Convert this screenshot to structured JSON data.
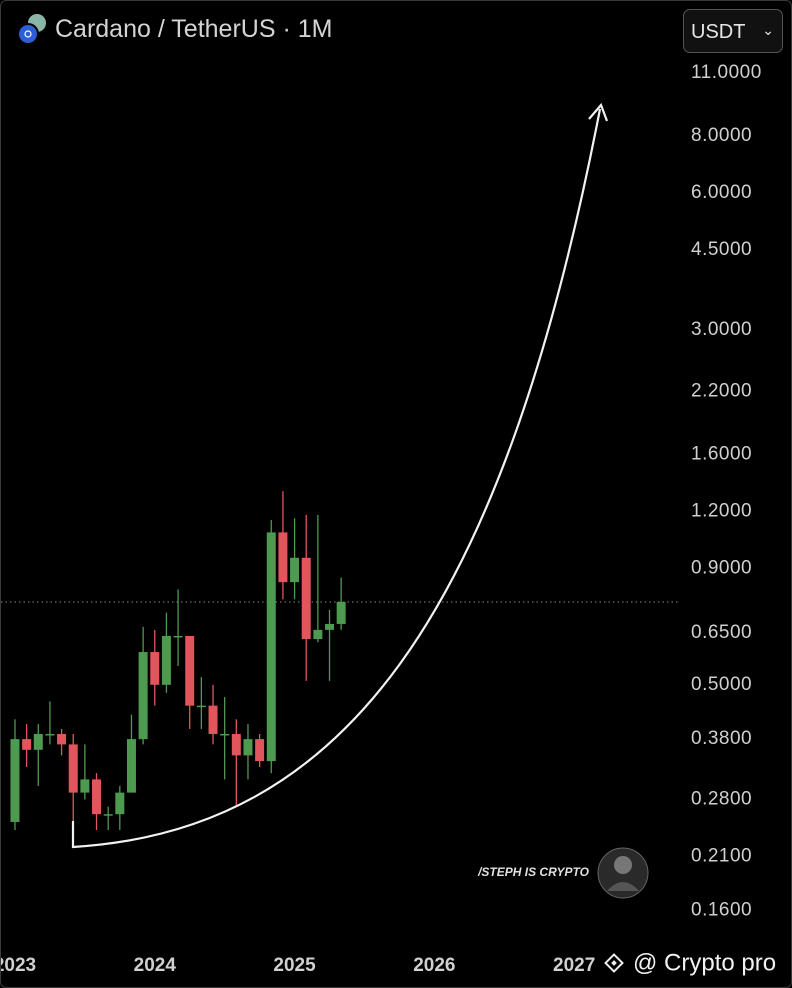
{
  "chart_data": {
    "type": "candlestick",
    "title": "Cardano / TetherUS · 1M",
    "currency": "USDT",
    "log_scale": true,
    "up_color": "#4e9a51",
    "down_color": "#e0565c",
    "xlim": [
      2022.9,
      2027.75
    ],
    "xticks": [
      2023,
      2024,
      2025,
      2026,
      2027
    ],
    "ylim": [
      0.137,
      12.3
    ],
    "yticks": [
      {
        "value": 0.16,
        "label": "0.1600"
      },
      {
        "value": 0.21,
        "label": "0.2100"
      },
      {
        "value": 0.28,
        "label": "0.2800"
      },
      {
        "value": 0.38,
        "label": "0.3800"
      },
      {
        "value": 0.5,
        "label": "0.5000"
      },
      {
        "value": 0.65,
        "label": "0.6500"
      },
      {
        "value": 0.9,
        "label": "0.9000"
      },
      {
        "value": 1.2,
        "label": "1.2000"
      },
      {
        "value": 1.6,
        "label": "1.6000"
      },
      {
        "value": 2.2,
        "label": "2.2000"
      },
      {
        "value": 3,
        "label": "3.0000"
      },
      {
        "value": 4.5,
        "label": "4.5000"
      },
      {
        "value": 6,
        "label": "6.0000"
      },
      {
        "value": 8,
        "label": "8.0000"
      },
      {
        "value": 11,
        "label": "11.0000"
      }
    ],
    "last_price": 0.76,
    "x": [
      2023.0,
      2023.0833,
      2023.1667,
      2023.25,
      2023.3333,
      2023.4167,
      2023.5,
      2023.5833,
      2023.6667,
      2023.75,
      2023.8333,
      2023.9167,
      2024.0,
      2024.0833,
      2024.1667,
      2024.25,
      2024.3333,
      2024.4167,
      2024.5,
      2024.5833,
      2024.6667,
      2024.75,
      2024.8333,
      2024.9167,
      2025.0,
      2025.0833,
      2025.1667,
      2025.25,
      2025.3333
    ],
    "open": [
      0.25,
      0.38,
      0.36,
      0.39,
      0.39,
      0.37,
      0.29,
      0.31,
      0.26,
      0.26,
      0.29,
      0.38,
      0.59,
      0.5,
      0.64,
      0.64,
      0.45,
      0.45,
      0.39,
      0.39,
      0.35,
      0.38,
      0.34,
      1.08,
      0.84,
      0.95,
      0.63,
      0.66,
      0.68
    ],
    "high": [
      0.42,
      0.41,
      0.41,
      0.46,
      0.4,
      0.39,
      0.37,
      0.32,
      0.27,
      0.3,
      0.43,
      0.67,
      0.66,
      0.72,
      0.81,
      0.64,
      0.52,
      0.5,
      0.47,
      0.42,
      0.41,
      0.39,
      1.15,
      1.33,
      1.16,
      1.18,
      1.18,
      0.73,
      0.86
    ],
    "low": [
      0.24,
      0.33,
      0.3,
      0.37,
      0.35,
      0.24,
      0.28,
      0.24,
      0.24,
      0.24,
      0.29,
      0.37,
      0.45,
      0.48,
      0.55,
      0.4,
      0.4,
      0.37,
      0.31,
      0.27,
      0.31,
      0.33,
      0.32,
      0.77,
      0.77,
      0.51,
      0.62,
      0.51,
      0.66
    ],
    "close": [
      0.38,
      0.36,
      0.39,
      0.39,
      0.37,
      0.29,
      0.31,
      0.26,
      0.26,
      0.29,
      0.38,
      0.59,
      0.5,
      0.64,
      0.64,
      0.45,
      0.45,
      0.39,
      0.39,
      0.35,
      0.38,
      0.34,
      1.08,
      0.84,
      0.95,
      0.63,
      0.66,
      0.68,
      0.76
    ]
  },
  "watermarks": [
    "/STEPH IS CRYPTO",
    "@ Crypto pro"
  ]
}
